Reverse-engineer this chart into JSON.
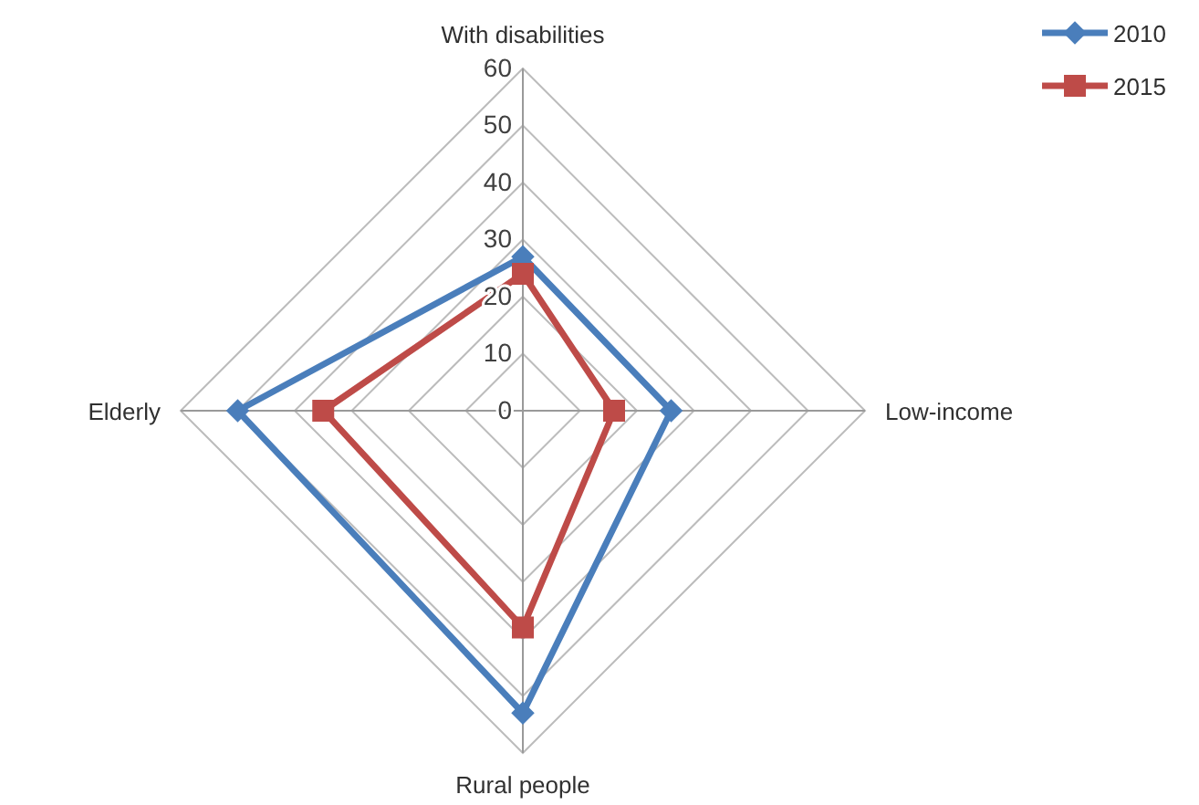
{
  "chart_data": {
    "type": "radar",
    "categories": [
      "With disabilities",
      "Low-income",
      "Rural people",
      "Elderly"
    ],
    "series": [
      {
        "name": "2010",
        "color": "#4a7ebb",
        "marker": "diamond",
        "values": [
          27,
          26,
          53,
          50
        ]
      },
      {
        "name": "2015",
        "color": "#be4b48",
        "marker": "square",
        "values": [
          24,
          16,
          38,
          35
        ]
      }
    ],
    "ylim": [
      0,
      60
    ],
    "yticks": [
      0,
      10,
      20,
      30,
      40,
      50,
      60
    ],
    "grid": true,
    "legend": "top right",
    "line_style": "solid"
  }
}
